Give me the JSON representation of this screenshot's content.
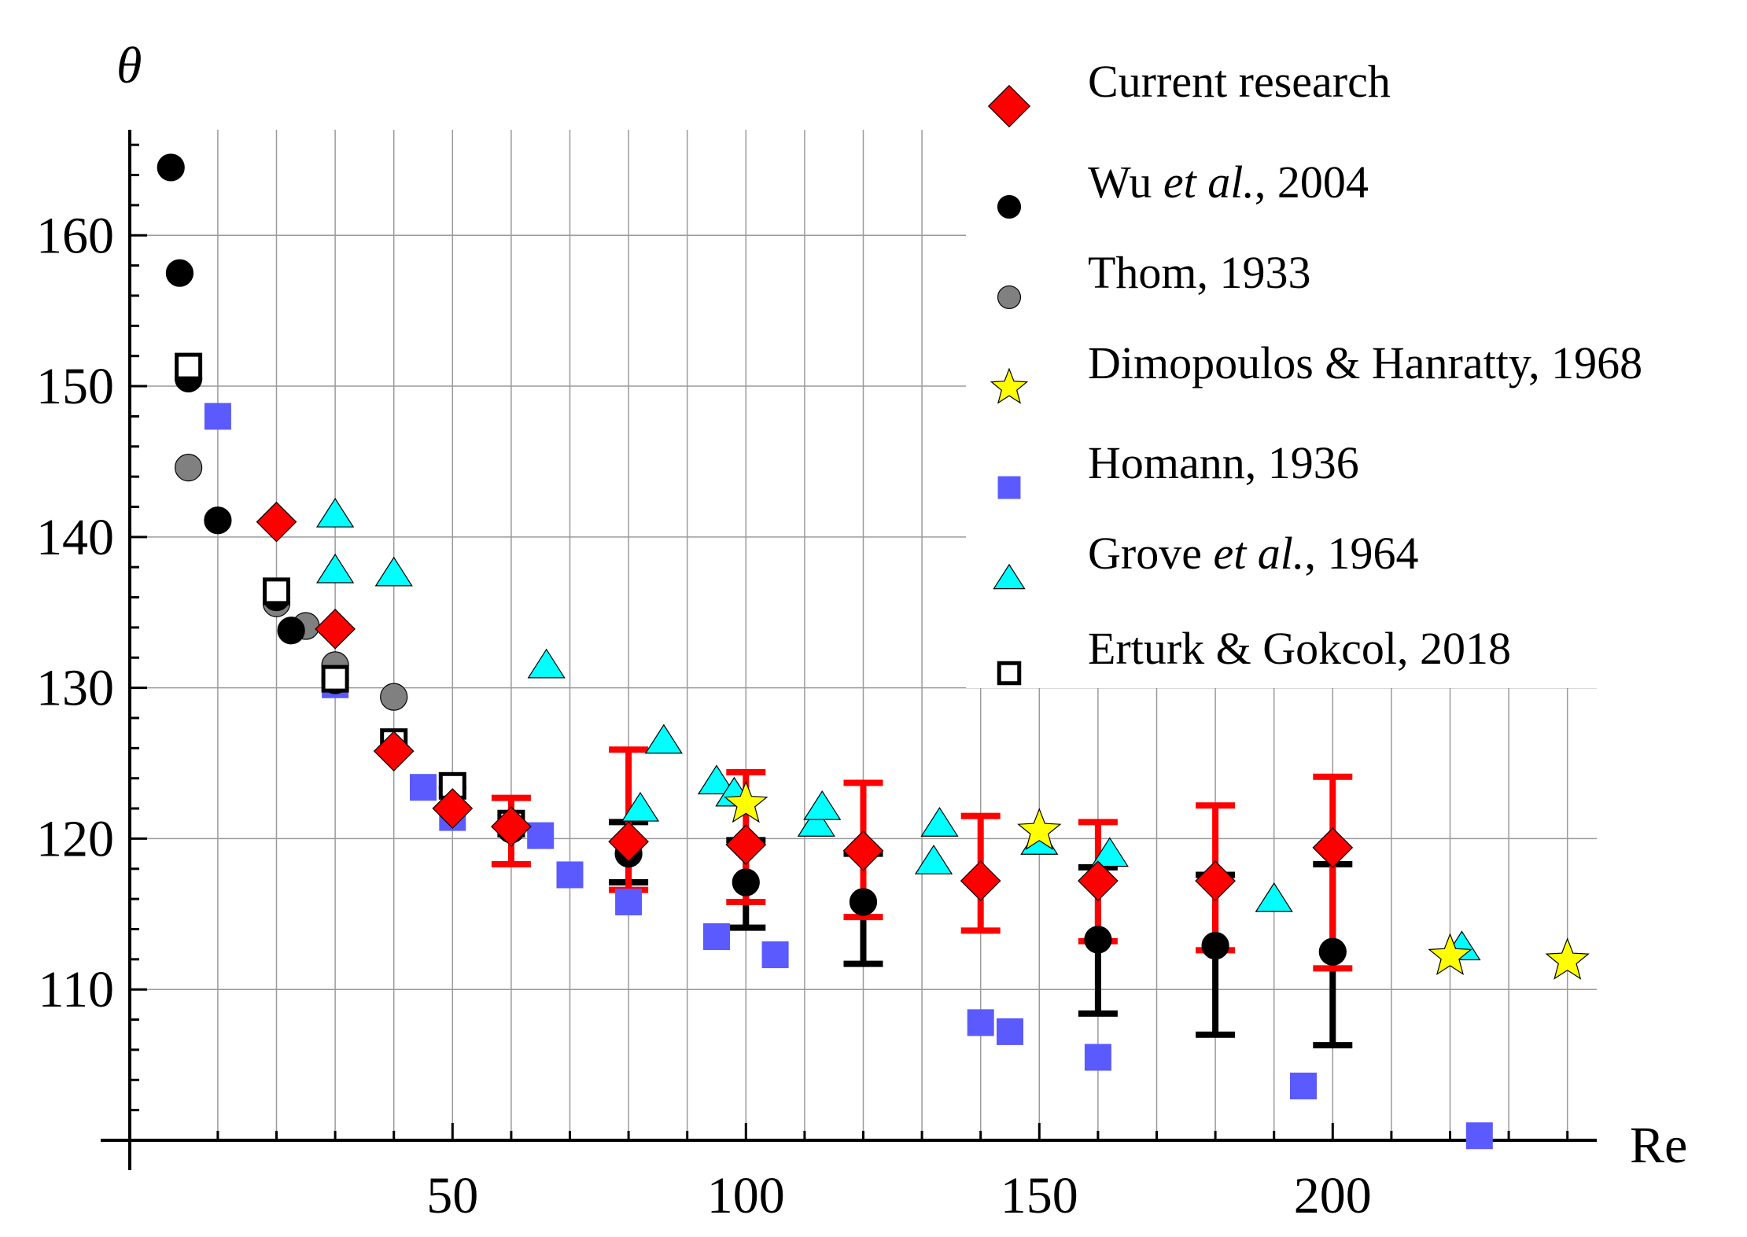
{
  "chart_data": {
    "type": "scatter",
    "title": "",
    "xlabel": "Re",
    "ylabel": "θ",
    "xlim": [
      -5,
      245
    ],
    "ylim": [
      100,
      167
    ],
    "x_ticks": [
      50,
      100,
      150,
      200
    ],
    "y_ticks": [
      110,
      120,
      130,
      140,
      150,
      160
    ],
    "grid": true,
    "legend_position": "top-right",
    "series": [
      {
        "name": "Current research",
        "label_parts": [
          {
            "text": "Current research",
            "italic": false
          }
        ],
        "marker": "diamond",
        "color": "#ff0000",
        "points": [
          {
            "x": 20,
            "y": 141.0
          },
          {
            "x": 30,
            "y": 133.9
          },
          {
            "x": 40,
            "y": 125.8
          },
          {
            "x": 50,
            "y": 122.0
          },
          {
            "x": 60,
            "y": 120.8,
            "err_low": 118.3,
            "err_high": 122.7
          },
          {
            "x": 80,
            "y": 119.8,
            "err_low": 116.6,
            "err_high": 125.9
          },
          {
            "x": 100,
            "y": 119.6,
            "err_low": 115.8,
            "err_high": 124.4
          },
          {
            "x": 120,
            "y": 119.2,
            "err_low": 114.8,
            "err_high": 123.7
          },
          {
            "x": 140,
            "y": 117.2,
            "err_low": 113.9,
            "err_high": 121.5
          },
          {
            "x": 160,
            "y": 117.2,
            "err_low": 113.2,
            "err_high": 121.1
          },
          {
            "x": 180,
            "y": 117.2,
            "err_low": 112.6,
            "err_high": 122.2
          },
          {
            "x": 200,
            "y": 119.4,
            "err_low": 111.4,
            "err_high": 124.1
          }
        ]
      },
      {
        "name": "Wu et al., 2004",
        "label_parts": [
          {
            "text": "Wu ",
            "italic": false
          },
          {
            "text": "et al.",
            "italic": true
          },
          {
            "text": ", 2004",
            "italic": false
          }
        ],
        "marker": "circle",
        "color": "#000000",
        "points": [
          {
            "x": 2,
            "y": 164.5
          },
          {
            "x": 3.5,
            "y": 157.5
          },
          {
            "x": 5,
            "y": 150.5
          },
          {
            "x": 10,
            "y": 141.1
          },
          {
            "x": 20,
            "y": 136.0
          },
          {
            "x": 22.5,
            "y": 133.8
          },
          {
            "x": 30,
            "y": 130.5
          },
          {
            "x": 40,
            "y": 125.8
          },
          {
            "x": 50,
            "y": 123.4
          },
          {
            "x": 60,
            "y": 120.6
          },
          {
            "x": 80,
            "y": 119.0,
            "err_low": 117.1,
            "err_high": 121.1
          },
          {
            "x": 100,
            "y": 117.1,
            "err_low": 114.1,
            "err_high": 119.9
          },
          {
            "x": 120,
            "y": 115.8,
            "err_low": 111.7,
            "err_high": 119.0
          },
          {
            "x": 160,
            "y": 113.3,
            "err_low": 108.4,
            "err_high": 118.1
          },
          {
            "x": 180,
            "y": 112.9,
            "err_low": 107.0,
            "err_high": 117.6
          },
          {
            "x": 200,
            "y": 112.5,
            "err_low": 106.3,
            "err_high": 118.3
          }
        ]
      },
      {
        "name": "Thom, 1933",
        "label_parts": [
          {
            "text": "Thom, 1933",
            "italic": false
          }
        ],
        "marker": "circle",
        "color": "#808080",
        "points": [
          {
            "x": 5,
            "y": 144.6
          },
          {
            "x": 20,
            "y": 135.6
          },
          {
            "x": 25,
            "y": 134.1
          },
          {
            "x": 30,
            "y": 131.5
          },
          {
            "x": 40,
            "y": 129.4
          }
        ]
      },
      {
        "name": "Dimopoulos & Hanratty, 1968",
        "label_parts": [
          {
            "text": "Dimopoulos & Hanratty, 1968",
            "italic": false
          }
        ],
        "marker": "star",
        "color": "#ffff00",
        "points": [
          {
            "x": 100,
            "y": 122.3
          },
          {
            "x": 150,
            "y": 120.5
          },
          {
            "x": 220,
            "y": 112.2
          },
          {
            "x": 240,
            "y": 111.9
          }
        ]
      },
      {
        "name": "Homann, 1936",
        "label_parts": [
          {
            "text": "Homann, 1936",
            "italic": false
          }
        ],
        "marker": "square",
        "color": "#5a5aff",
        "points": [
          {
            "x": 10,
            "y": 148.0
          },
          {
            "x": 30,
            "y": 130.2
          },
          {
            "x": 45,
            "y": 123.4
          },
          {
            "x": 50,
            "y": 121.4
          },
          {
            "x": 65,
            "y": 120.2
          },
          {
            "x": 70,
            "y": 117.6
          },
          {
            "x": 80,
            "y": 115.8
          },
          {
            "x": 95,
            "y": 113.5
          },
          {
            "x": 105,
            "y": 112.3
          },
          {
            "x": 140,
            "y": 107.8
          },
          {
            "x": 145,
            "y": 107.2
          },
          {
            "x": 160,
            "y": 105.5
          },
          {
            "x": 195,
            "y": 103.6
          },
          {
            "x": 225,
            "y": 100.3
          }
        ]
      },
      {
        "name": "Grove et al., 1964",
        "label_parts": [
          {
            "text": "Grove ",
            "italic": false
          },
          {
            "text": "et al.",
            "italic": true
          },
          {
            "text": ", 1964",
            "italic": false
          }
        ],
        "marker": "triangle",
        "color": "#00ffff",
        "points": [
          {
            "x": 30,
            "y": 141.5
          },
          {
            "x": 30,
            "y": 137.8
          },
          {
            "x": 40,
            "y": 137.6
          },
          {
            "x": 66,
            "y": 131.5
          },
          {
            "x": 82,
            "y": 122.0
          },
          {
            "x": 86,
            "y": 126.5
          },
          {
            "x": 95,
            "y": 123.8
          },
          {
            "x": 98,
            "y": 123.0
          },
          {
            "x": 112,
            "y": 121.0
          },
          {
            "x": 113,
            "y": 122.1
          },
          {
            "x": 132,
            "y": 118.5
          },
          {
            "x": 133,
            "y": 121.0
          },
          {
            "x": 150,
            "y": 119.8
          },
          {
            "x": 162,
            "y": 119.0
          },
          {
            "x": 190,
            "y": 116.0
          },
          {
            "x": 222,
            "y": 112.8
          }
        ]
      },
      {
        "name": "Erturk & Gokcol, 2018",
        "label_parts": [
          {
            "text": "Erturk & Gokcol, 2018",
            "italic": false
          }
        ],
        "marker": "open-square",
        "color": "#000000",
        "points": [
          {
            "x": 5,
            "y": 151.3
          },
          {
            "x": 20,
            "y": 136.4
          },
          {
            "x": 30,
            "y": 130.6
          },
          {
            "x": 40,
            "y": 126.4
          },
          {
            "x": 50,
            "y": 123.5
          },
          {
            "x": 60,
            "y": 121.0
          }
        ]
      }
    ]
  }
}
